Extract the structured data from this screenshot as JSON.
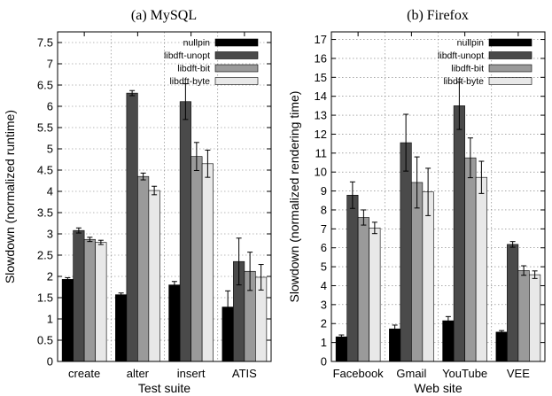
{
  "chart_data": [
    {
      "type": "bar",
      "title": "(a) MySQL",
      "xlabel": "Test suite",
      "ylabel": "Slowdown (normalized runtime)",
      "ylim": [
        0,
        7.75
      ],
      "yticks": [
        0,
        0.5,
        1,
        1.5,
        2,
        2.5,
        3,
        3.5,
        4,
        4.5,
        5,
        5.5,
        6,
        6.5,
        7,
        7.5
      ],
      "grid": true,
      "legend_position": "top-right",
      "categories": [
        "create",
        "alter",
        "insert",
        "ATIS"
      ],
      "series": [
        {
          "name": "nullpin",
          "values": [
            1.93,
            1.57,
            1.8,
            1.28
          ],
          "errors": [
            0.04,
            0.04,
            0.08,
            0.38
          ]
        },
        {
          "name": "libdft-unopt",
          "values": [
            3.08,
            6.31,
            6.11,
            2.35
          ],
          "errors": [
            0.06,
            0.06,
            0.42,
            0.55
          ]
        },
        {
          "name": "libdft-bit",
          "values": [
            2.87,
            4.35,
            4.82,
            2.12
          ],
          "errors": [
            0.05,
            0.08,
            0.33,
            0.45
          ]
        },
        {
          "name": "libdft-byte",
          "values": [
            2.8,
            4.02,
            4.65,
            1.98
          ],
          "errors": [
            0.05,
            0.1,
            0.32,
            0.3
          ]
        }
      ]
    },
    {
      "type": "bar",
      "title": "(b) Firefox",
      "xlabel": "Web site",
      "ylabel": "Slowdown (normalized rendering time)",
      "ylim": [
        0,
        17.4
      ],
      "yticks": [
        0,
        1,
        2,
        3,
        4,
        5,
        6,
        7,
        8,
        9,
        10,
        11,
        12,
        13,
        14,
        15,
        16,
        17
      ],
      "grid": true,
      "legend_position": "top-right",
      "categories": [
        "Facebook",
        "Gmail",
        "YouTube",
        "VEE"
      ],
      "series": [
        {
          "name": "nullpin",
          "values": [
            1.3,
            1.72,
            2.15,
            1.55
          ],
          "errors": [
            0.1,
            0.2,
            0.22,
            0.08
          ]
        },
        {
          "name": "libdft-unopt",
          "values": [
            8.78,
            11.55,
            13.5,
            6.18
          ],
          "errors": [
            0.7,
            1.5,
            1.25,
            0.15
          ]
        },
        {
          "name": "libdft-bit",
          "values": [
            7.6,
            9.45,
            10.75,
            4.8
          ],
          "errors": [
            0.4,
            1.35,
            1.05,
            0.25
          ]
        },
        {
          "name": "libdft-byte",
          "values": [
            7.05,
            8.95,
            9.72,
            4.58
          ],
          "errors": [
            0.3,
            1.25,
            0.85,
            0.2
          ]
        }
      ]
    }
  ],
  "colors": {
    "nullpin": "#000000",
    "libdft-unopt": "#4a4a4a",
    "libdft-bit": "#9a9a9a",
    "libdft-byte": "#e8e8e8"
  }
}
